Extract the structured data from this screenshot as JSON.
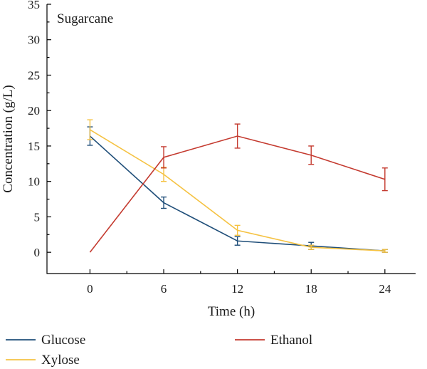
{
  "chart_data": {
    "type": "line",
    "panel_label": "Sugarcane",
    "xlabel": "Time (h)",
    "ylabel": "Concentration (g/L)",
    "x": [
      0,
      6,
      12,
      18,
      24
    ],
    "x_ticks": [
      "0",
      "6",
      "12",
      "18",
      "24"
    ],
    "xlim": [
      -3.5,
      26.5
    ],
    "y_ticks": [
      "0",
      "5",
      "10",
      "15",
      "20",
      "25",
      "30",
      "35"
    ],
    "ylim": [
      -3,
      35
    ],
    "grid": false,
    "legend_position": "bottom",
    "series": [
      {
        "name": "Glucose",
        "color": "#1f4e79",
        "values": [
          16.4,
          7.0,
          1.6,
          0.9,
          0.2
        ],
        "errors": [
          1.3,
          0.8,
          0.6,
          0.5,
          0.2
        ]
      },
      {
        "name": "Xylose",
        "color": "#f5c242",
        "values": [
          17.3,
          11.0,
          3.1,
          0.7,
          0.2
        ],
        "errors": [
          1.4,
          1.0,
          0.7,
          0.3,
          0.2
        ]
      },
      {
        "name": "Ethanol",
        "color": "#c43a2f",
        "values": [
          0.0,
          13.4,
          16.4,
          13.7,
          10.3
        ],
        "errors": [
          0.0,
          1.5,
          1.7,
          1.3,
          1.6
        ]
      }
    ]
  }
}
